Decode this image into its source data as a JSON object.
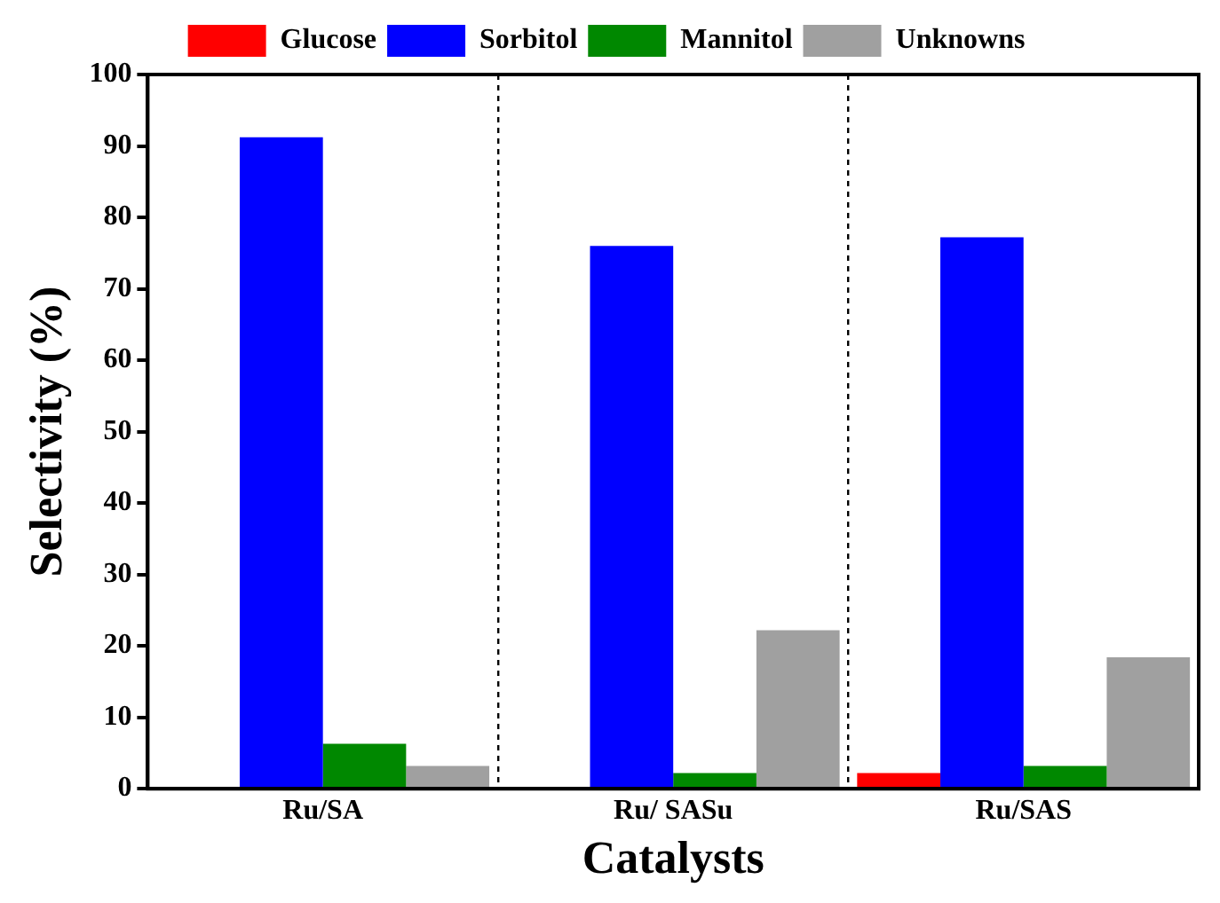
{
  "chart_data": {
    "type": "bar",
    "xlabel": "Catalysts",
    "ylabel": "Selectivity (%)",
    "categories": [
      "Ru/SA",
      "Ru/ SASu",
      "Ru/SAS"
    ],
    "series": [
      {
        "name": "Glucose",
        "color": "#ff0000",
        "values": [
          0,
          0,
          2.2
        ]
      },
      {
        "name": "Sorbitol",
        "color": "#0000ff",
        "values": [
          91.2,
          76,
          77.2
        ]
      },
      {
        "name": "Mannitol",
        "color": "#008800",
        "values": [
          6.3,
          2.2,
          3.2
        ]
      },
      {
        "name": "Unknowns",
        "color": "#a0a0a0",
        "values": [
          3.2,
          22.2,
          18.4
        ]
      }
    ],
    "ylim": [
      0,
      100
    ],
    "yticks": [
      0,
      10,
      20,
      30,
      40,
      50,
      60,
      70,
      80,
      90,
      100
    ],
    "grid": "x",
    "legend": "top"
  }
}
